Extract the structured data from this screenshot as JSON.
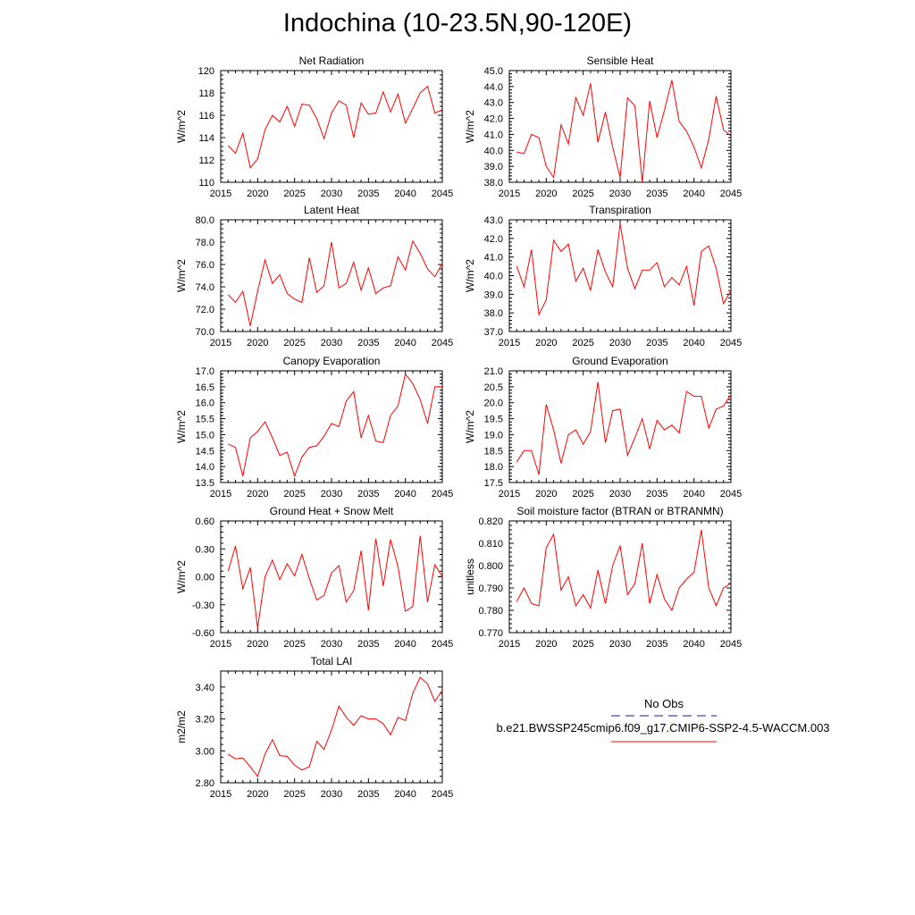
{
  "title": "Indochina (10-23.5N,90-120E)",
  "colors": {
    "series": "#ff0000",
    "obs": "#1a1a8c",
    "axis": "#000000"
  },
  "legend": {
    "obs_label": "No Obs",
    "model_label": "b.e21.BWSSP245cmip6.f09_g17.CMIP6-SSP2-4.5-WACCM.003"
  },
  "chart_data": [
    {
      "type": "line",
      "title": "Net Radiation",
      "ylabel": "W/m^2",
      "xlim": [
        2015,
        2045
      ],
      "ylim": [
        110,
        120
      ],
      "xticks": [
        "2015",
        "2020",
        "2025",
        "2030",
        "2035",
        "2040",
        "2045"
      ],
      "yticks": [
        "110",
        "112",
        "114",
        "116",
        "118",
        "120"
      ],
      "x_start": 2016,
      "values": [
        113.3,
        112.6,
        114.4,
        111.3,
        112.1,
        114.7,
        116.0,
        115.4,
        116.8,
        115.0,
        117.0,
        116.9,
        115.7,
        113.9,
        116.2,
        117.3,
        116.9,
        114.0,
        117.1,
        116.1,
        116.2,
        118.1,
        116.3,
        117.9,
        115.3,
        116.6,
        118.0,
        118.6,
        116.2,
        116.5
      ]
    },
    {
      "type": "line",
      "title": "Sensible Heat",
      "ylabel": "W/m^2",
      "xlim": [
        2015,
        2045
      ],
      "ylim": [
        38,
        45
      ],
      "xticks": [
        "2015",
        "2020",
        "2025",
        "2030",
        "2035",
        "2040",
        "2045"
      ],
      "yticks": [
        "38.0",
        "39.0",
        "40.0",
        "41.0",
        "42.0",
        "43.0",
        "44.0",
        "45.0"
      ],
      "x_start": 2016,
      "values": [
        39.9,
        39.8,
        41.0,
        40.8,
        39.0,
        38.3,
        41.6,
        40.4,
        43.3,
        42.2,
        44.2,
        40.5,
        42.4,
        40.2,
        38.3,
        43.3,
        42.8,
        38.0,
        43.1,
        40.8,
        42.5,
        44.4,
        41.8,
        41.2,
        40.2,
        38.9,
        40.7,
        43.4,
        41.3,
        40.9
      ]
    },
    {
      "type": "line",
      "title": "Latent Heat",
      "ylabel": "W/m^2",
      "xlim": [
        2015,
        2045
      ],
      "ylim": [
        70,
        80
      ],
      "xticks": [
        "2015",
        "2020",
        "2025",
        "2030",
        "2035",
        "2040",
        "2045"
      ],
      "yticks": [
        "70.0",
        "72.0",
        "74.0",
        "76.0",
        "78.0",
        "80.0"
      ],
      "x_start": 2016,
      "values": [
        73.3,
        72.6,
        73.6,
        70.5,
        73.6,
        76.4,
        74.3,
        75.1,
        73.4,
        72.9,
        72.6,
        76.6,
        73.5,
        74.1,
        78.0,
        73.9,
        74.3,
        76.2,
        73.7,
        75.7,
        73.4,
        73.9,
        74.1,
        76.7,
        75.5,
        78.1,
        77.0,
        75.6,
        74.9,
        76.1
      ]
    },
    {
      "type": "line",
      "title": "Transpiration",
      "ylabel": "W/m^2",
      "xlim": [
        2015,
        2045
      ],
      "ylim": [
        37,
        43
      ],
      "xticks": [
        "2015",
        "2020",
        "2025",
        "2030",
        "2035",
        "2040",
        "2045"
      ],
      "yticks": [
        "37.0",
        "38.0",
        "39.0",
        "40.0",
        "41.0",
        "42.0",
        "43.0"
      ],
      "x_start": 2016,
      "values": [
        40.5,
        39.4,
        41.4,
        37.9,
        38.7,
        41.9,
        41.3,
        41.7,
        39.7,
        40.4,
        39.2,
        41.4,
        40.2,
        39.4,
        42.8,
        40.4,
        39.3,
        40.3,
        40.3,
        40.7,
        39.4,
        39.9,
        39.5,
        40.5,
        38.4,
        41.3,
        41.6,
        40.4,
        38.5,
        39.2
      ]
    },
    {
      "type": "line",
      "title": "Canopy Evaporation",
      "ylabel": "W/m^2",
      "xlim": [
        2015,
        2045
      ],
      "ylim": [
        13.5,
        17.0
      ],
      "xticks": [
        "2015",
        "2020",
        "2025",
        "2030",
        "2035",
        "2040",
        "2045"
      ],
      "yticks": [
        "13.5",
        "14.0",
        "14.5",
        "15.0",
        "15.5",
        "16.0",
        "16.5",
        "17.0"
      ],
      "x_start": 2016,
      "values": [
        14.7,
        14.6,
        13.7,
        14.9,
        15.1,
        15.4,
        14.9,
        14.35,
        14.45,
        13.7,
        14.3,
        14.6,
        14.65,
        14.95,
        15.35,
        15.25,
        16.05,
        16.35,
        14.9,
        15.6,
        14.8,
        14.75,
        15.6,
        15.9,
        16.9,
        16.6,
        16.1,
        15.35,
        16.5,
        16.5
      ]
    },
    {
      "type": "line",
      "title": "Ground Evaporation",
      "ylabel": "W/m^2",
      "xlim": [
        2015,
        2045
      ],
      "ylim": [
        17.5,
        21.0
      ],
      "xticks": [
        "2015",
        "2020",
        "2025",
        "2030",
        "2035",
        "2040",
        "2045"
      ],
      "yticks": [
        "17.5",
        "18.0",
        "18.5",
        "19.0",
        "19.5",
        "20.0",
        "20.5",
        "21.0"
      ],
      "x_start": 2016,
      "values": [
        18.15,
        18.5,
        18.5,
        17.75,
        19.95,
        19.15,
        18.1,
        19.0,
        19.15,
        18.7,
        19.1,
        20.65,
        18.75,
        19.75,
        19.8,
        18.35,
        18.9,
        19.5,
        18.55,
        19.45,
        19.15,
        19.3,
        19.05,
        20.35,
        20.2,
        20.2,
        19.2,
        19.8,
        19.9,
        20.25
      ]
    },
    {
      "type": "line",
      "title": "Ground Heat + Snow Melt",
      "ylabel": "W/m^2",
      "xlim": [
        2015,
        2045
      ],
      "ylim": [
        -0.6,
        0.6
      ],
      "xticks": [
        "2015",
        "2020",
        "2025",
        "2030",
        "2035",
        "2040",
        "2045"
      ],
      "yticks": [
        "-0.60",
        "-0.30",
        "0.00",
        "0.30",
        "0.60"
      ],
      "x_start": 2016,
      "values": [
        0.06,
        0.33,
        -0.13,
        0.1,
        -0.55,
        0.0,
        0.18,
        -0.03,
        0.14,
        0.01,
        0.24,
        -0.02,
        -0.25,
        -0.2,
        0.04,
        0.12,
        -0.27,
        -0.15,
        0.28,
        -0.36,
        0.41,
        -0.1,
        0.4,
        0.11,
        -0.37,
        -0.32,
        0.44,
        -0.27,
        0.13,
        0.0
      ]
    },
    {
      "type": "line",
      "title": "Soil moisture factor (BTRAN or BTRANMN)",
      "ylabel": "unitless",
      "xlim": [
        2015,
        2045
      ],
      "ylim": [
        0.77,
        0.82
      ],
      "xticks": [
        "2015",
        "2020",
        "2025",
        "2030",
        "2035",
        "2040",
        "2045"
      ],
      "yticks": [
        "0.770",
        "0.780",
        "0.790",
        "0.800",
        "0.810",
        "0.820"
      ],
      "x_start": 2016,
      "values": [
        0.784,
        0.79,
        0.783,
        0.782,
        0.808,
        0.814,
        0.789,
        0.795,
        0.782,
        0.787,
        0.781,
        0.798,
        0.783,
        0.8,
        0.809,
        0.787,
        0.792,
        0.81,
        0.783,
        0.796,
        0.785,
        0.78,
        0.79,
        0.794,
        0.797,
        0.816,
        0.79,
        0.782,
        0.79,
        0.792
      ]
    },
    {
      "type": "line",
      "title": "Total LAI",
      "ylabel": "m2/m2",
      "xlim": [
        2015,
        2045
      ],
      "ylim": [
        2.8,
        3.5
      ],
      "xticks": [
        "2015",
        "2020",
        "2025",
        "2030",
        "2035",
        "2040",
        "2045"
      ],
      "yticks": [
        "2.80",
        "3.00",
        "3.20",
        "3.40"
      ],
      "x_start": 2016,
      "values": [
        2.98,
        2.95,
        2.955,
        2.9,
        2.84,
        2.98,
        3.07,
        2.97,
        2.965,
        2.91,
        2.88,
        2.9,
        3.06,
        3.01,
        3.13,
        3.28,
        3.21,
        3.16,
        3.22,
        3.2,
        3.2,
        3.17,
        3.1,
        3.21,
        3.19,
        3.36,
        3.46,
        3.42,
        3.31,
        3.38
      ]
    }
  ]
}
